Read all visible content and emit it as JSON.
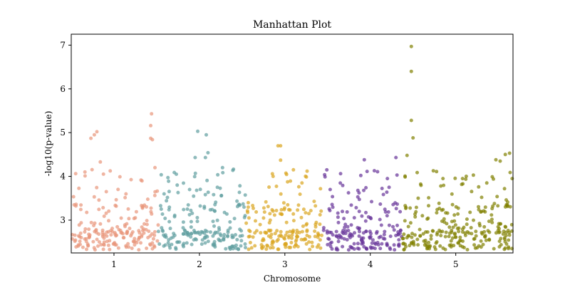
{
  "chart_data": {
    "type": "scatter",
    "title": "Manhattan Plot",
    "xlabel": "Chromosome",
    "ylabel": "-log10(p-value)",
    "xlim": [
      0.5,
      5.67
    ],
    "ylim": [
      2.25,
      7.25
    ],
    "xticks": [
      1,
      2,
      3,
      4,
      5
    ],
    "xtick_labels": [
      "1",
      "2",
      "3",
      "4",
      "5"
    ],
    "yticks": [
      3,
      4,
      5,
      6,
      7
    ],
    "ytick_labels": [
      "3",
      "4",
      "5",
      "6",
      "7"
    ],
    "grid": false,
    "point_alpha": 0.7,
    "series": [
      {
        "name": "1",
        "color": "#e8967a",
        "x_range": [
          0.5,
          1.52
        ],
        "peaks": [
          {
            "x": 0.73,
            "y": 4.87
          },
          {
            "x": 0.77,
            "y": 4.95
          },
          {
            "x": 0.8,
            "y": 5.02
          },
          {
            "x": 0.84,
            "y": 4.33
          },
          {
            "x": 0.66,
            "y": 4.1
          },
          {
            "x": 0.91,
            "y": 3.65
          },
          {
            "x": 1.44,
            "y": 5.43
          },
          {
            "x": 1.43,
            "y": 5.16
          },
          {
            "x": 1.43,
            "y": 4.87
          },
          {
            "x": 1.45,
            "y": 4.84
          },
          {
            "x": 1.48,
            "y": 4.2
          },
          {
            "x": 1.14,
            "y": 3.6
          }
        ]
      },
      {
        "name": "2",
        "color": "#5f9ea0",
        "x_range": [
          1.52,
          2.54
        ],
        "peaks": [
          {
            "x": 1.98,
            "y": 5.03
          },
          {
            "x": 2.08,
            "y": 4.95
          },
          {
            "x": 2.1,
            "y": 4.54
          },
          {
            "x": 2.07,
            "y": 4.43
          },
          {
            "x": 1.95,
            "y": 4.43
          },
          {
            "x": 2.27,
            "y": 4.2
          },
          {
            "x": 1.73,
            "y": 4.05
          },
          {
            "x": 2.21,
            "y": 3.75
          }
        ]
      },
      {
        "name": "3",
        "color": "#daa520",
        "x_range": [
          2.54,
          3.45
        ],
        "peaks": [
          {
            "x": 2.92,
            "y": 4.7
          },
          {
            "x": 2.95,
            "y": 4.7
          },
          {
            "x": 2.95,
            "y": 4.37
          },
          {
            "x": 3.1,
            "y": 4.15
          },
          {
            "x": 3.26,
            "y": 4.12
          },
          {
            "x": 3.2,
            "y": 3.85
          }
        ]
      },
      {
        "name": "4",
        "color": "#663399",
        "x_range": [
          3.45,
          4.37
        ],
        "peaks": [
          {
            "x": 3.93,
            "y": 4.38
          },
          {
            "x": 4.3,
            "y": 4.43
          },
          {
            "x": 3.47,
            "y": 3.99
          },
          {
            "x": 4.2,
            "y": 3.95
          },
          {
            "x": 4.22,
            "y": 3.75
          },
          {
            "x": 3.53,
            "y": 3.7
          }
        ]
      },
      {
        "name": "5",
        "color": "#808000",
        "x_range": [
          4.37,
          5.67
        ],
        "peaks": [
          {
            "x": 4.48,
            "y": 6.97
          },
          {
            "x": 4.48,
            "y": 6.4
          },
          {
            "x": 4.48,
            "y": 5.28
          },
          {
            "x": 4.5,
            "y": 4.88
          },
          {
            "x": 4.43,
            "y": 4.48
          },
          {
            "x": 5.63,
            "y": 4.53
          },
          {
            "x": 5.58,
            "y": 4.5
          },
          {
            "x": 5.52,
            "y": 4.35
          },
          {
            "x": 5.47,
            "y": 4.38
          },
          {
            "x": 4.85,
            "y": 3.95
          },
          {
            "x": 5.08,
            "y": 3.95
          },
          {
            "x": 5.66,
            "y": 3.95
          }
        ]
      }
    ]
  }
}
